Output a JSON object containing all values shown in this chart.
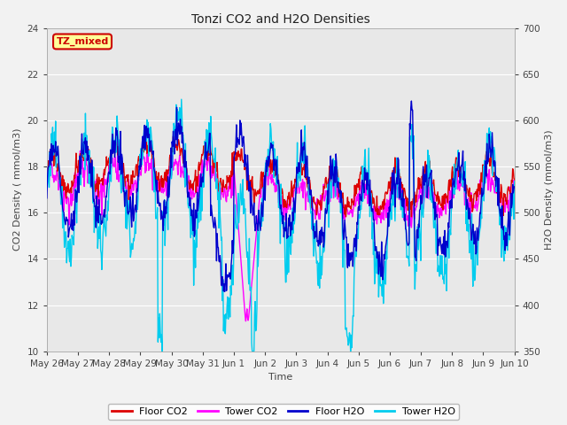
{
  "title": "Tonzi CO2 and H2O Densities",
  "xlabel": "Time",
  "ylabel_left": "CO2 Density ( mmol/m3)",
  "ylabel_right": "H2O Density (mmol/m3)",
  "ylim_left": [
    10,
    24
  ],
  "ylim_right": [
    350,
    700
  ],
  "yticks_left": [
    10,
    12,
    14,
    16,
    18,
    20,
    22,
    24
  ],
  "yticks_right": [
    350,
    400,
    450,
    500,
    550,
    600,
    650,
    700
  ],
  "colors": {
    "floor_co2": "#dd0000",
    "tower_co2": "#ff00ff",
    "floor_h2o": "#0000cc",
    "tower_h2o": "#00ccee"
  },
  "legend_labels": [
    "Floor CO2",
    "Tower CO2",
    "Floor H2O",
    "Tower H2O"
  ],
  "annotation_text": "TZ_mixed",
  "annotation_color": "#cc0000",
  "annotation_bg": "#ffff99",
  "n_points": 800,
  "xtick_labels": [
    "May 26",
    "May 27",
    "May 28",
    "May 29",
    "May 30",
    "May 31",
    "Jun 1",
    "Jun 2",
    "Jun 3",
    "Jun 4",
    "Jun 5",
    "Jun 6",
    "Jun 7",
    "Jun 8",
    "Jun 9",
    "Jun 10"
  ],
  "plot_bg_color": "#e8e8e8",
  "fig_bg_color": "#f2f2f2",
  "grid_color": "#ffffff",
  "linewidth": 1.0,
  "title_fontsize": 10,
  "label_fontsize": 8,
  "tick_fontsize": 7.5
}
